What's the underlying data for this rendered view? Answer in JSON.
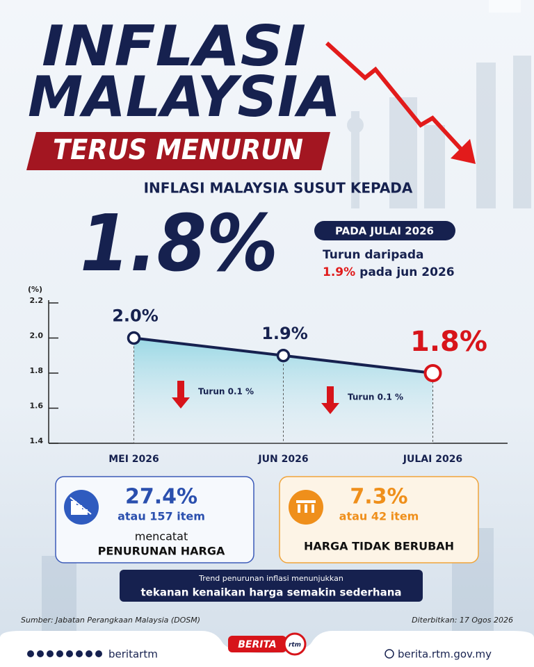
{
  "header": {
    "title_line1": "INFLASI",
    "title_line2": "MALAYSIA",
    "banner": "TERUS MENURUN",
    "subtitle": "INFLASI MALAYSIA SUSUT KEPADA",
    "headline_value": "1.8%",
    "period_badge": "PADA JULAI 2026",
    "comparison_line1": "Turun daripada",
    "comparison_value": "1.9%",
    "comparison_line2": "pada jun 2026"
  },
  "chart_data": {
    "type": "line",
    "y_label": "(%)",
    "categories": [
      "MEI 2026",
      "JUN 2026",
      "JULAI 2026"
    ],
    "values": [
      2.0,
      1.9,
      1.8
    ],
    "value_labels": [
      "2.0%",
      "1.9%",
      "1.8%"
    ],
    "color": "#16214f",
    "highlight_color": "#d7141a",
    "ylim": [
      1.4,
      2.2
    ],
    "yticks": [
      1.4,
      1.6,
      1.8,
      {
        "value": 2,
        "label": "2.0"
      },
      2.2
    ],
    "annotations": [
      "Turun 0.1 %",
      "Turun 0.1 %"
    ]
  },
  "stats": [
    {
      "value": "27.4%",
      "count": "atau 157 item",
      "desc_line1": "mencatat",
      "desc_line2": "PENURUNAN HARGA"
    },
    {
      "value": "7.3%",
      "count": "atau 42 item",
      "desc": "HARGA TIDAK BERUBAH"
    }
  ],
  "note": {
    "line1": "Trend penurunan inflasi menunjukkan",
    "line2": "tekanan kenaikan harga semakin sederhana"
  },
  "footer": {
    "source": "Sumber: Jabatan Perangkaan Malaysia (DOSM)",
    "published": "Diterbitkan: 17 Ogos 2026",
    "social": "beritartm",
    "logo": "BERITA",
    "logo_mark": "rtm",
    "website": "berita.rtm.gov.my"
  }
}
